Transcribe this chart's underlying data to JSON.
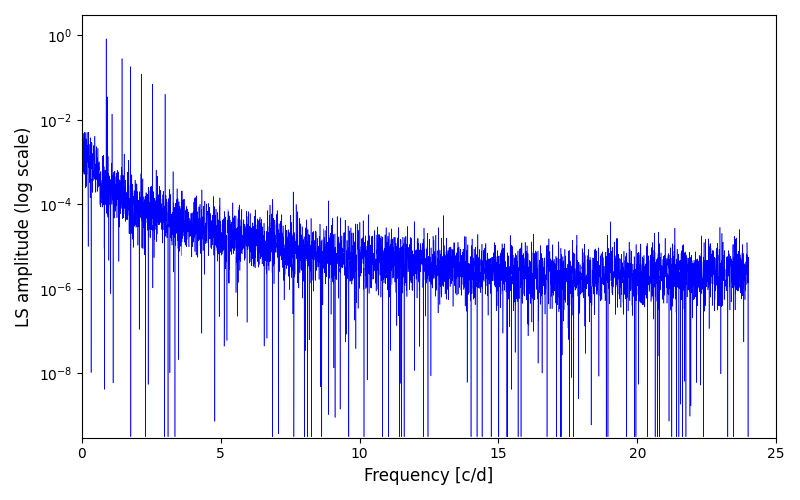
{
  "xlabel": "Frequency [c/d]",
  "ylabel": "LS amplitude (log scale)",
  "xlim": [
    0,
    25
  ],
  "ylim_bottom": 3e-10,
  "ylim_top": 3,
  "yscale": "log",
  "line_color": "#0000ff",
  "line_width": 0.4,
  "freq_max": 24.0,
  "n_points": 5000,
  "seed": 7,
  "figsize": [
    8.0,
    5.0
  ],
  "dpi": 100,
  "yticks": [
    1e-08,
    1e-06,
    0.0001,
    0.01,
    1.0
  ],
  "xticks": [
    0,
    5,
    10,
    15,
    20,
    25
  ]
}
